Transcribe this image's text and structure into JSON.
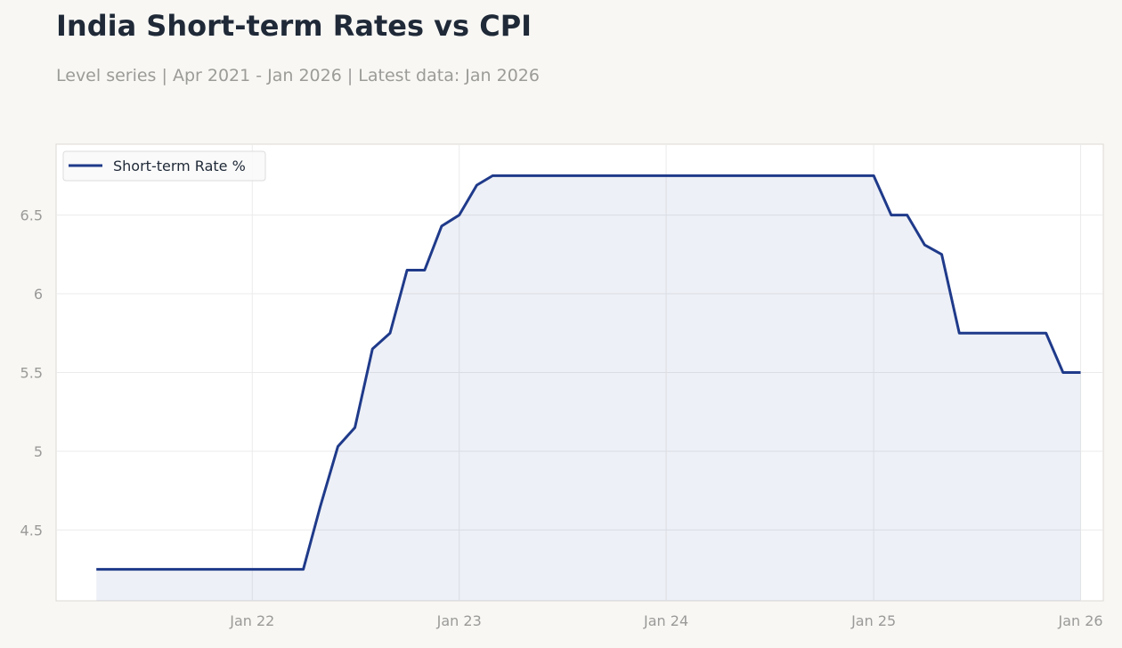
{
  "header": {
    "title": "India Short-term Rates vs CPI",
    "subtitle": "Level series | Apr 2021 - Jan 2026 | Latest data: Jan 2026"
  },
  "colors": {
    "line": "#1f3a8a",
    "area_fill": "#1f3a8a",
    "background": "#f8f7f4",
    "plot_background": "#ffffff",
    "grid": "#ebebeb",
    "tick_text": "#9a9a98",
    "title_text": "#1f2937"
  },
  "chart_data": {
    "type": "area",
    "title": "India Short-term Rates vs CPI",
    "subtitle": "Level series | Apr 2021 - Jan 2026 | Latest data: Jan 2026",
    "xlabel": "",
    "ylabel": "",
    "grid": true,
    "legend_position": "top-left",
    "xlim": [
      "2021-01-20",
      "2026-02-10"
    ],
    "ylim": [
      4.05,
      6.95
    ],
    "x_ticks": [
      {
        "date": "2022-01-01",
        "label": "Jan 22"
      },
      {
        "date": "2023-01-01",
        "label": "Jan 23"
      },
      {
        "date": "2024-01-01",
        "label": "Jan 24"
      },
      {
        "date": "2025-01-01",
        "label": "Jan 25"
      },
      {
        "date": "2026-01-01",
        "label": "Jan 26"
      }
    ],
    "y_ticks": [
      {
        "value": 4.5,
        "label": "4.5"
      },
      {
        "value": 5.0,
        "label": "5"
      },
      {
        "value": 5.5,
        "label": "5.5"
      },
      {
        "value": 6.0,
        "label": "6"
      },
      {
        "value": 6.5,
        "label": "6.5"
      }
    ],
    "series": [
      {
        "name": "Short-term Rate %",
        "x": [
          "2021-04-01",
          "2021-05-01",
          "2021-06-01",
          "2021-07-01",
          "2021-08-01",
          "2021-09-01",
          "2021-10-01",
          "2021-11-01",
          "2021-12-01",
          "2022-01-01",
          "2022-02-01",
          "2022-03-01",
          "2022-04-01",
          "2022-05-01",
          "2022-06-01",
          "2022-07-01",
          "2022-08-01",
          "2022-09-01",
          "2022-10-01",
          "2022-11-01",
          "2022-12-01",
          "2023-01-01",
          "2023-02-01",
          "2023-03-01",
          "2023-04-01",
          "2023-05-01",
          "2023-06-01",
          "2023-07-01",
          "2023-08-01",
          "2023-09-01",
          "2023-10-01",
          "2023-11-01",
          "2023-12-01",
          "2024-01-01",
          "2024-02-01",
          "2024-03-01",
          "2024-04-01",
          "2024-05-01",
          "2024-06-01",
          "2024-07-01",
          "2024-08-01",
          "2024-09-01",
          "2024-10-01",
          "2024-11-01",
          "2024-12-01",
          "2025-01-01",
          "2025-02-01",
          "2025-03-01",
          "2025-04-01",
          "2025-05-01",
          "2025-06-01",
          "2025-07-01",
          "2025-08-01",
          "2025-09-01",
          "2025-10-01",
          "2025-11-01",
          "2025-12-01",
          "2026-01-01"
        ],
        "values": [
          4.25,
          4.25,
          4.25,
          4.25,
          4.25,
          4.25,
          4.25,
          4.25,
          4.25,
          4.25,
          4.25,
          4.25,
          4.25,
          4.65,
          5.03,
          5.15,
          5.65,
          5.75,
          6.15,
          6.15,
          6.43,
          6.5,
          6.69,
          6.75,
          6.75,
          6.75,
          6.75,
          6.75,
          6.75,
          6.75,
          6.75,
          6.75,
          6.75,
          6.75,
          6.75,
          6.75,
          6.75,
          6.75,
          6.75,
          6.75,
          6.75,
          6.75,
          6.75,
          6.75,
          6.75,
          6.75,
          6.5,
          6.5,
          6.31,
          6.25,
          5.75,
          5.75,
          5.75,
          5.75,
          5.75,
          5.75,
          5.5,
          5.5
        ]
      }
    ]
  }
}
